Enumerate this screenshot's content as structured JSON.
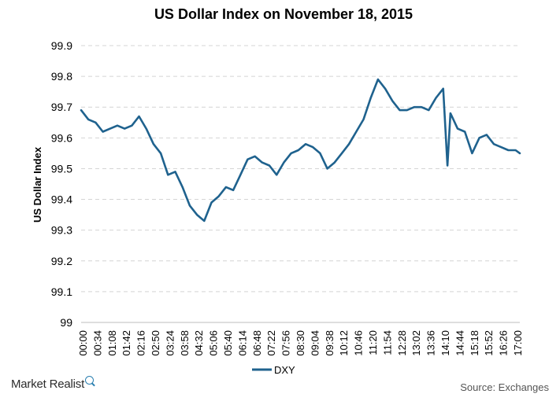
{
  "chart_data": {
    "type": "line",
    "title": "US Dollar Index on November 18, 2015",
    "ylabel": "US Dollar Index",
    "xlabel": "",
    "ylim": [
      99,
      99.9
    ],
    "y_ticks": [
      "99",
      "99.1",
      "99.2",
      "99.3",
      "99.4",
      "99.5",
      "99.6",
      "99.7",
      "99.8",
      "99.9"
    ],
    "x_ticks": [
      "00:00",
      "00:34",
      "01:08",
      "01:42",
      "02:16",
      "02:50",
      "03:24",
      "03:58",
      "04:32",
      "05:06",
      "05:40",
      "06:14",
      "06:48",
      "07:22",
      "07:56",
      "08:30",
      "09:04",
      "09:38",
      "10:12",
      "10:46",
      "11:20",
      "11:54",
      "12:28",
      "13:02",
      "13:36",
      "14:10",
      "14:44",
      "15:18",
      "15:52",
      "16:26",
      "17:00"
    ],
    "grid": true,
    "legend_position": "bottom",
    "line_color": "#1f628e",
    "series": [
      {
        "name": "DXY",
        "x": [
          "00:00",
          "00:17",
          "00:34",
          "00:51",
          "01:08",
          "01:25",
          "01:42",
          "01:59",
          "02:16",
          "02:33",
          "02:50",
          "03:07",
          "03:24",
          "03:41",
          "03:58",
          "04:15",
          "04:32",
          "04:49",
          "05:06",
          "05:23",
          "05:40",
          "05:57",
          "06:14",
          "06:31",
          "06:48",
          "07:05",
          "07:22",
          "07:39",
          "07:56",
          "08:13",
          "08:30",
          "08:47",
          "09:04",
          "09:21",
          "09:38",
          "09:55",
          "10:12",
          "10:29",
          "10:46",
          "11:03",
          "11:20",
          "11:37",
          "11:54",
          "12:11",
          "12:28",
          "12:45",
          "13:02",
          "13:19",
          "13:36",
          "13:53",
          "14:10",
          "14:20",
          "14:27",
          "14:44",
          "15:01",
          "15:18",
          "15:35",
          "15:52",
          "16:09",
          "16:26",
          "16:43",
          "17:00",
          "17:10"
        ],
        "values": [
          99.69,
          99.66,
          99.65,
          99.62,
          99.63,
          99.64,
          99.63,
          99.64,
          99.67,
          99.63,
          99.58,
          99.55,
          99.48,
          99.49,
          99.44,
          99.38,
          99.35,
          99.33,
          99.39,
          99.41,
          99.44,
          99.43,
          99.48,
          99.53,
          99.54,
          99.52,
          99.51,
          99.48,
          99.52,
          99.55,
          99.56,
          99.58,
          99.57,
          99.55,
          99.5,
          99.52,
          99.55,
          99.58,
          99.62,
          99.66,
          99.73,
          99.79,
          99.76,
          99.72,
          99.69,
          99.69,
          99.7,
          99.7,
          99.69,
          99.73,
          99.76,
          99.51,
          99.68,
          99.63,
          99.62,
          99.55,
          99.6,
          99.61,
          99.58,
          99.57,
          99.56,
          99.56,
          99.55
        ]
      }
    ]
  },
  "footer": {
    "brand": "Market Realist",
    "brand_icon": "magnifier-icon",
    "source": "Source: Exchanges"
  }
}
